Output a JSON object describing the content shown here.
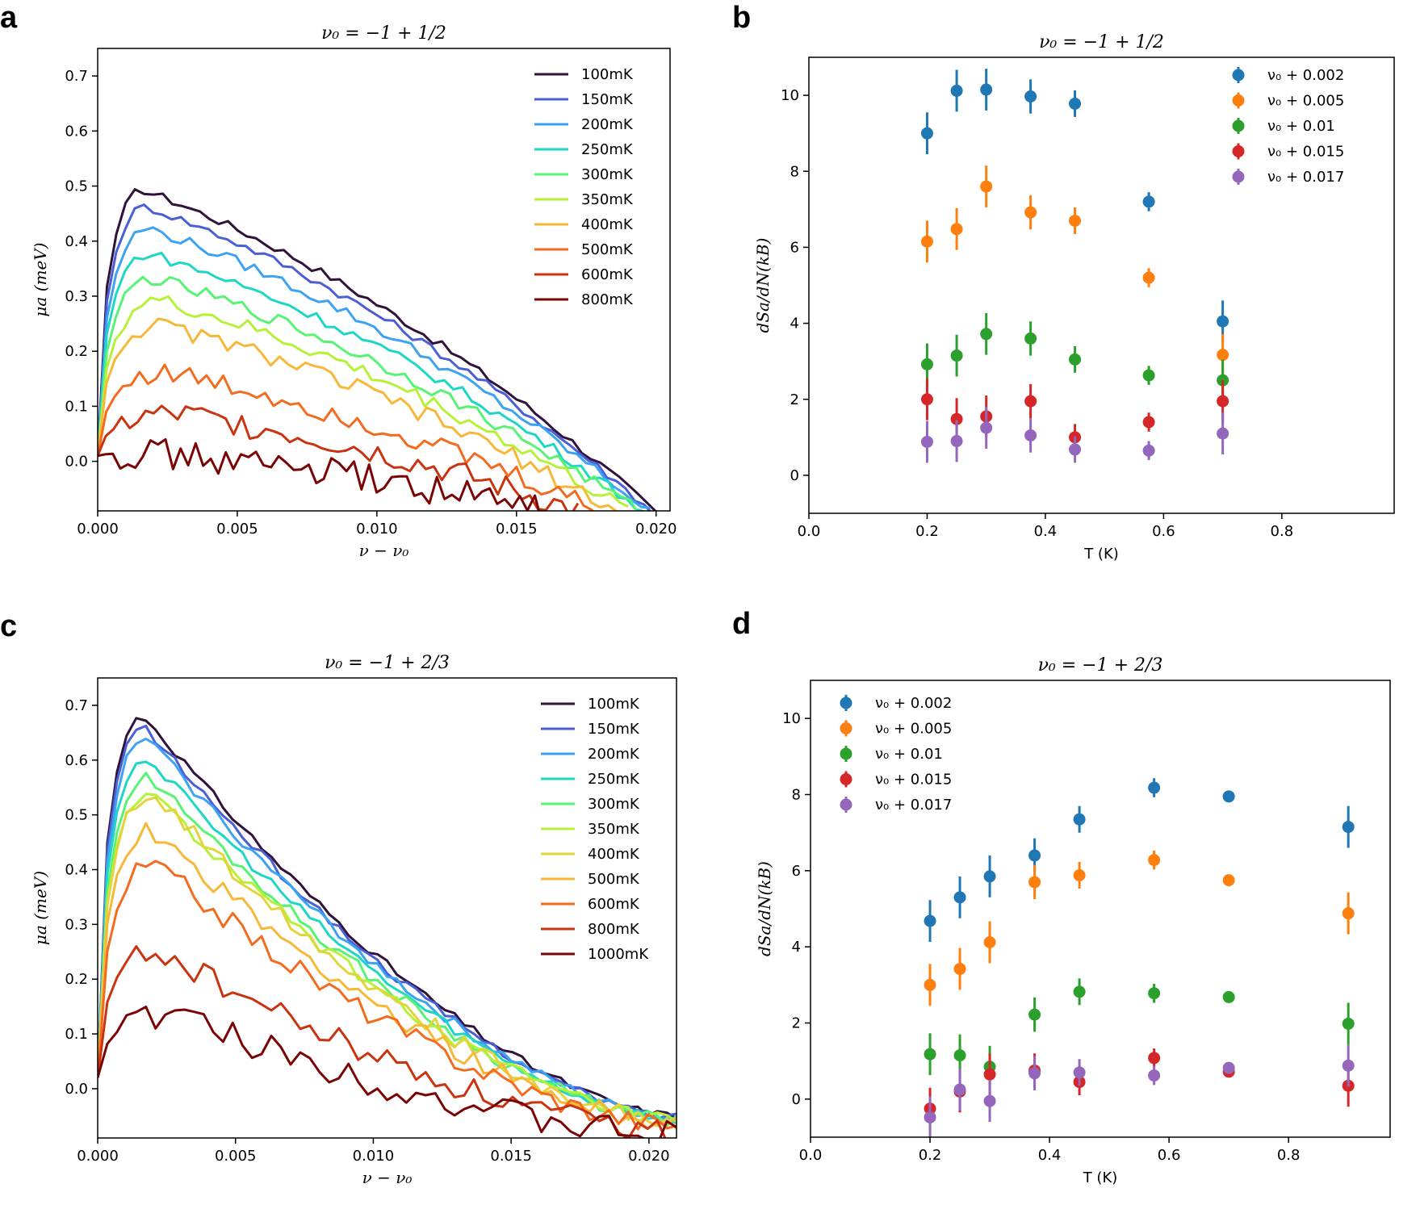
{
  "panel_letters": [
    "a",
    "b",
    "c",
    "d"
  ],
  "chart_data": [
    {
      "id": "a",
      "type": "line",
      "title": "ν₀ = −1 + 1/2",
      "xlabel": "ν − ν₀",
      "ylabel": "μa (meV)",
      "xlim": [
        0,
        0.0205
      ],
      "ylim": [
        -0.09,
        0.75
      ],
      "xticks": [
        0,
        0.005,
        0.01,
        0.015,
        0.02
      ],
      "xtick_labels": [
        "0.000",
        "0.005",
        "0.010",
        "0.015",
        "0.020"
      ],
      "yticks": [
        0,
        0.1,
        0.2,
        0.3,
        0.4,
        0.5,
        0.6,
        0.7
      ],
      "ytick_labels": [
        "0.0",
        "0.1",
        "0.2",
        "0.3",
        "0.4",
        "0.5",
        "0.6",
        "0.7"
      ],
      "legend_loc": "upper-right",
      "series": [
        {
          "name": "100mK",
          "color": "#30123b",
          "peak": 0.49,
          "xpeak": 0.0018,
          "end": 0.02,
          "noise": 0.004
        },
        {
          "name": "150mK",
          "color": "#4a5fd6",
          "peak": 0.46,
          "xpeak": 0.0019,
          "end": 0.0199,
          "noise": 0.004
        },
        {
          "name": "200mK",
          "color": "#3ca2f2",
          "peak": 0.42,
          "xpeak": 0.002,
          "end": 0.0198,
          "noise": 0.005
        },
        {
          "name": "250mK",
          "color": "#1ed6c5",
          "peak": 0.375,
          "xpeak": 0.002,
          "end": 0.0196,
          "noise": 0.005
        },
        {
          "name": "300mK",
          "color": "#58f274",
          "peak": 0.33,
          "xpeak": 0.0021,
          "end": 0.0194,
          "noise": 0.006
        },
        {
          "name": "350mK",
          "color": "#b5f237",
          "peak": 0.29,
          "xpeak": 0.0023,
          "end": 0.019,
          "noise": 0.007
        },
        {
          "name": "400mK",
          "color": "#f6b836",
          "peak": 0.245,
          "xpeak": 0.0023,
          "end": 0.0186,
          "noise": 0.008
        },
        {
          "name": "500mK",
          "color": "#f26b1f",
          "peak": 0.16,
          "xpeak": 0.0025,
          "end": 0.018,
          "noise": 0.01
        },
        {
          "name": "600mK",
          "color": "#c93310",
          "peak": 0.085,
          "xpeak": 0.003,
          "end": 0.0172,
          "noise": 0.012
        },
        {
          "name": "800mK",
          "color": "#7a0403",
          "peak": 0.015,
          "xpeak": 0.002,
          "end": 0.0162,
          "noise": 0.014
        }
      ]
    },
    {
      "id": "b",
      "type": "scatter",
      "title": "ν₀ = −1 + 1/2",
      "xlabel": "T (K)",
      "ylabel": "dSa/dN(kB)",
      "xlim": [
        0,
        0.99
      ],
      "ylim": [
        -1,
        11
      ],
      "xticks": [
        0,
        0.2,
        0.4,
        0.6,
        0.8
      ],
      "xtick_labels": [
        "0.0",
        "0.2",
        "0.4",
        "0.6",
        "0.8"
      ],
      "yticks": [
        0,
        2,
        4,
        6,
        8,
        10
      ],
      "ytick_labels": [
        "0",
        "2",
        "4",
        "6",
        "8",
        "10"
      ],
      "legend_loc": "upper-right",
      "series": [
        {
          "name": "ν₀ + 0.002",
          "color": "#1f77b4",
          "x": [
            0.2,
            0.25,
            0.3,
            0.375,
            0.45,
            0.575,
            0.7
          ],
          "y": [
            9.0,
            10.12,
            10.15,
            9.97,
            9.78,
            7.2,
            4.05
          ],
          "err": [
            0.55,
            0.55,
            0.55,
            0.45,
            0.35,
            0.25,
            0.55
          ]
        },
        {
          "name": "ν₀ + 0.005",
          "color": "#ff7f0e",
          "x": [
            0.2,
            0.25,
            0.3,
            0.375,
            0.45,
            0.575,
            0.7
          ],
          "y": [
            6.15,
            6.48,
            7.6,
            6.92,
            6.7,
            5.2,
            3.17
          ],
          "err": [
            0.55,
            0.55,
            0.55,
            0.45,
            0.35,
            0.25,
            0.55
          ]
        },
        {
          "name": "ν₀ + 0.01",
          "color": "#2ca02c",
          "x": [
            0.2,
            0.25,
            0.3,
            0.375,
            0.45,
            0.575,
            0.7
          ],
          "y": [
            2.92,
            3.15,
            3.72,
            3.6,
            3.05,
            2.63,
            2.5
          ],
          "err": [
            0.55,
            0.55,
            0.55,
            0.45,
            0.35,
            0.25,
            0.55
          ]
        },
        {
          "name": "ν₀ + 0.015",
          "color": "#d62728",
          "x": [
            0.2,
            0.25,
            0.3,
            0.375,
            0.45,
            0.575,
            0.7
          ],
          "y": [
            2.0,
            1.48,
            1.55,
            1.95,
            1.0,
            1.4,
            1.95
          ],
          "err": [
            0.55,
            0.55,
            0.55,
            0.45,
            0.35,
            0.25,
            0.55
          ]
        },
        {
          "name": "ν₀ + 0.017",
          "color": "#9467bd",
          "x": [
            0.2,
            0.25,
            0.3,
            0.375,
            0.45,
            0.575,
            0.7
          ],
          "y": [
            0.88,
            0.9,
            1.25,
            1.05,
            0.68,
            0.65,
            1.1
          ],
          "err": [
            0.55,
            0.55,
            0.55,
            0.45,
            0.35,
            0.25,
            0.55
          ]
        }
      ]
    },
    {
      "id": "c",
      "type": "line",
      "title": "ν₀ = −1 + 2/3",
      "xlabel": "ν − ν₀",
      "ylabel": "μa (meV)",
      "xlim": [
        0,
        0.021
      ],
      "ylim": [
        -0.09,
        0.75
      ],
      "xticks": [
        0,
        0.005,
        0.01,
        0.015,
        0.02
      ],
      "xtick_labels": [
        "0.000",
        "0.005",
        "0.010",
        "0.015",
        "0.020"
      ],
      "yticks": [
        0,
        0.1,
        0.2,
        0.3,
        0.4,
        0.5,
        0.6,
        0.7
      ],
      "ytick_labels": [
        "0.0",
        "0.1",
        "0.2",
        "0.3",
        "0.4",
        "0.5",
        "0.6",
        "0.7"
      ],
      "legend_loc": "upper-right",
      "series": [
        {
          "name": "100mK",
          "color": "#30123b",
          "peak": 0.675,
          "xpeak": 0.0018,
          "end": -0.05,
          "noise": 0.004
        },
        {
          "name": "150mK",
          "color": "#4a5fd6",
          "peak": 0.655,
          "xpeak": 0.0018,
          "end": -0.052,
          "noise": 0.004
        },
        {
          "name": "200mK",
          "color": "#3ca2f2",
          "peak": 0.635,
          "xpeak": 0.0019,
          "end": -0.054,
          "noise": 0.005
        },
        {
          "name": "250mK",
          "color": "#1ed6c5",
          "peak": 0.6,
          "xpeak": 0.0019,
          "end": -0.056,
          "noise": 0.005
        },
        {
          "name": "300mK",
          "color": "#58f274",
          "peak": 0.565,
          "xpeak": 0.002,
          "end": -0.058,
          "noise": 0.006
        },
        {
          "name": "350mK",
          "color": "#b5f237",
          "peak": 0.535,
          "xpeak": 0.002,
          "end": -0.06,
          "noise": 0.007
        },
        {
          "name": "400mK",
          "color": "#e2d43b",
          "peak": 0.535,
          "xpeak": 0.0021,
          "end": -0.062,
          "noise": 0.008
        },
        {
          "name": "500mK",
          "color": "#f6b836",
          "peak": 0.47,
          "xpeak": 0.002,
          "end": -0.064,
          "noise": 0.009
        },
        {
          "name": "600mK",
          "color": "#f26b1f",
          "peak": 0.405,
          "xpeak": 0.0022,
          "end": -0.066,
          "noise": 0.01
        },
        {
          "name": "800mK",
          "color": "#c93310",
          "peak": 0.25,
          "xpeak": 0.0022,
          "end": -0.08,
          "noise": 0.012
        },
        {
          "name": "1000mK",
          "color": "#7a0403",
          "peak": 0.135,
          "xpeak": 0.0028,
          "end": -0.085,
          "noise": 0.014
        }
      ]
    },
    {
      "id": "d",
      "type": "scatter",
      "title": "ν₀ = −1 + 2/3",
      "xlabel": "T (K)",
      "ylabel": "dSa/dN(kB)",
      "xlim": [
        0,
        0.97
      ],
      "ylim": [
        -1,
        11
      ],
      "xticks": [
        0,
        0.2,
        0.4,
        0.6,
        0.8
      ],
      "xtick_labels": [
        "0.0",
        "0.2",
        "0.4",
        "0.6",
        "0.8"
      ],
      "yticks": [
        0,
        2,
        4,
        6,
        8,
        10
      ],
      "ytick_labels": [
        "0",
        "2",
        "4",
        "6",
        "8",
        "10"
      ],
      "legend_loc": "upper-left",
      "series": [
        {
          "name": "ν₀ + 0.002",
          "color": "#1f77b4",
          "x": [
            0.2,
            0.25,
            0.3,
            0.375,
            0.45,
            0.575,
            0.7,
            0.9
          ],
          "y": [
            4.68,
            5.3,
            5.85,
            6.4,
            7.35,
            8.18,
            7.95,
            7.15
          ],
          "err": [
            0.55,
            0.55,
            0.55,
            0.45,
            0.35,
            0.25,
            0.15,
            0.55
          ]
        },
        {
          "name": "ν₀ + 0.005",
          "color": "#ff7f0e",
          "x": [
            0.2,
            0.25,
            0.3,
            0.375,
            0.45,
            0.575,
            0.7,
            0.9
          ],
          "y": [
            3.0,
            3.42,
            4.12,
            5.7,
            5.88,
            6.28,
            5.75,
            4.88
          ],
          "err": [
            0.55,
            0.55,
            0.55,
            0.45,
            0.35,
            0.25,
            0.15,
            0.55
          ]
        },
        {
          "name": "ν₀ + 0.01",
          "color": "#2ca02c",
          "x": [
            0.2,
            0.25,
            0.3,
            0.375,
            0.45,
            0.575,
            0.7,
            0.9
          ],
          "y": [
            1.18,
            1.15,
            0.85,
            2.22,
            2.82,
            2.78,
            2.68,
            1.98
          ],
          "err": [
            0.55,
            0.55,
            0.55,
            0.45,
            0.35,
            0.25,
            0.15,
            0.55
          ]
        },
        {
          "name": "ν₀ + 0.015",
          "color": "#d62728",
          "x": [
            0.2,
            0.25,
            0.3,
            0.375,
            0.45,
            0.575,
            0.7,
            0.9
          ],
          "y": [
            -0.25,
            0.2,
            0.65,
            0.75,
            0.45,
            1.08,
            0.72,
            0.35
          ],
          "err": [
            0.55,
            0.55,
            0.55,
            0.45,
            0.35,
            0.25,
            0.15,
            0.55
          ]
        },
        {
          "name": "ν₀ + 0.017",
          "color": "#9467bd",
          "x": [
            0.2,
            0.25,
            0.3,
            0.375,
            0.45,
            0.575,
            0.7,
            0.9
          ],
          "y": [
            -0.48,
            0.25,
            -0.05,
            0.68,
            0.7,
            0.62,
            0.82,
            0.88
          ],
          "err": [
            0.55,
            0.55,
            0.55,
            0.45,
            0.35,
            0.25,
            0.15,
            0.55
          ]
        }
      ]
    }
  ]
}
